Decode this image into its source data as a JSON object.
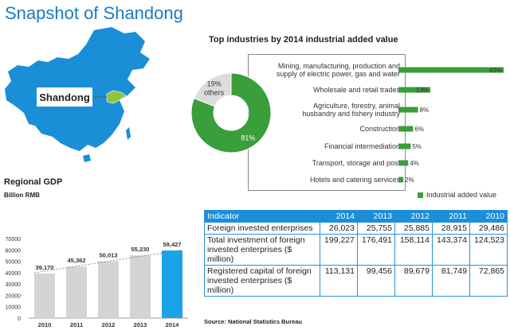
{
  "page": {
    "title": "Snapshot of Shandong",
    "map_label": "Shandong",
    "source": "Source: National Statistics Bureau"
  },
  "colors": {
    "title": "#1a7bbd",
    "green": "#3a9e3a",
    "map_fill": "#1a8fd8",
    "highlight": "#8cc63f",
    "bar_grey": "#d4d4d4",
    "bar_blue": "#1aa3e8",
    "table_header": "#1a8fd8"
  },
  "chart_data": [
    {
      "type": "pie",
      "title": "Top industries by 2014 industrial added value",
      "slices": [
        {
          "label": "",
          "value": 81,
          "value_label": "81%"
        },
        {
          "label": "others",
          "value": 19,
          "value_label": "19%"
        }
      ]
    },
    {
      "type": "bar",
      "title": "Top industries by 2014 industrial added value",
      "orientation": "horizontal",
      "legend": "Industrial added value",
      "legend_position": "bottom-right",
      "categories": [
        "Mining, manufacturing, production and supply of electric power, gas and water",
        "Wholesale and retail trades",
        "Agriculture, forestry, animal husbandry and fishery industry",
        "Construction",
        "Financial intermediation",
        "Transport, storage and post",
        "Hotels and catering services"
      ],
      "category_lines": [
        [
          "Mining, manufacturing, production and",
          "supply of electric power, gas and water"
        ],
        [
          "Wholesale and retail trades"
        ],
        [
          "Agriculture, forestry, animal",
          "husbandry and fishery industry"
        ],
        [
          "Construction"
        ],
        [
          "Financial intermediation"
        ],
        [
          "Transport, storage and post"
        ],
        [
          "Hotels and catering services"
        ]
      ],
      "values": [
        43,
        13,
        8,
        6,
        5,
        4,
        2
      ],
      "value_labels": [
        "43%",
        "13%",
        "8%",
        "6%",
        "5%",
        "4%",
        "2%"
      ],
      "xlim": [
        0,
        43
      ]
    },
    {
      "type": "bar",
      "title": "Regional GDP",
      "ylabel": "Billion RMB",
      "categories": [
        "2010",
        "2011",
        "2012",
        "2013",
        "2014"
      ],
      "values": [
        39170,
        45362,
        50013,
        55230,
        59427
      ],
      "value_labels": [
        "39,170",
        "45,362",
        "50,013",
        "55,230",
        "59,427"
      ],
      "ylim": [
        0,
        70000
      ],
      "yticks": [
        0,
        10000,
        20000,
        30000,
        40000,
        50000,
        60000,
        70000
      ],
      "ytick_labels": [
        "0",
        "10000",
        "20000",
        "30000",
        "40000",
        "50000",
        "60000",
        "70000"
      ],
      "highlight_index": 4,
      "trend_line": "dashed"
    },
    {
      "type": "table",
      "columns": [
        "Indicator",
        "2014",
        "2013",
        "2012",
        "2011",
        "2010"
      ],
      "rows": [
        {
          "indicator": "Foreign invested enterprises",
          "values": [
            "26,023",
            "25,755",
            "25,885",
            "28,915",
            "29,486"
          ]
        },
        {
          "indicator": "Total investment of foreign invested enterprises ($ million)",
          "values": [
            "199,227",
            "176,491",
            "158,114",
            "143,374",
            "124,523"
          ]
        },
        {
          "indicator": "Registered capital of foreign invested enterprises ($ million)",
          "values": [
            "113,131",
            "99,456",
            "89,679",
            "81,749",
            "72,865"
          ]
        }
      ]
    }
  ]
}
